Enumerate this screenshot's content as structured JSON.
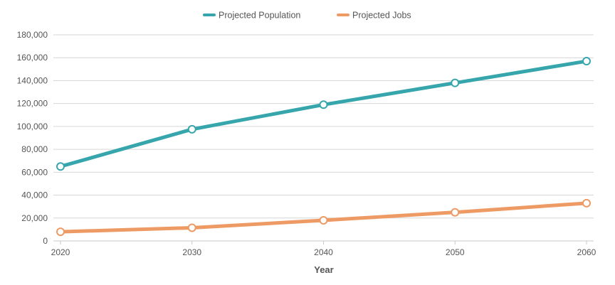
{
  "chart_data": {
    "type": "line",
    "title": "",
    "xlabel": "Year",
    "ylabel": "",
    "x": [
      2020,
      2030,
      2040,
      2050,
      2060
    ],
    "x_tick_labels": [
      "2020",
      "2030",
      "2040",
      "2050",
      "2060"
    ],
    "ylim": [
      0,
      180000
    ],
    "y_ticks": [
      0,
      20000,
      40000,
      60000,
      80000,
      100000,
      120000,
      140000,
      160000,
      180000
    ],
    "y_tick_labels": [
      "0",
      "20,000",
      "40,000",
      "60,000",
      "80,000",
      "100,000",
      "120,000",
      "140,000",
      "160,000",
      "180,000"
    ],
    "grid": true,
    "legend": "top-center",
    "series": [
      {
        "name": "Projected Population",
        "color": "#36a6ac",
        "values": [
          65000,
          97500,
          119000,
          138000,
          157000
        ]
      },
      {
        "name": "Projected Jobs",
        "color": "#ee9a64",
        "values": [
          8000,
          11500,
          18000,
          25000,
          33000
        ]
      }
    ]
  }
}
